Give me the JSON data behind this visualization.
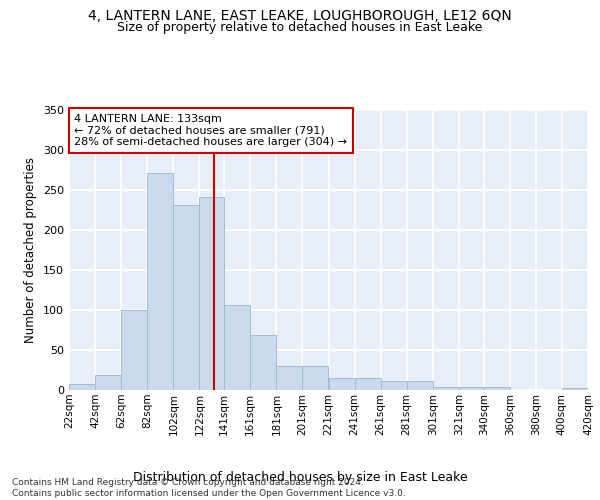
{
  "title": "4, LANTERN LANE, EAST LEAKE, LOUGHBOROUGH, LE12 6QN",
  "subtitle": "Size of property relative to detached houses in East Leake",
  "xlabel": "Distribution of detached houses by size in East Leake",
  "ylabel": "Number of detached properties",
  "bar_color": "#c9daef",
  "bar_edge_color": "#a0bcd8",
  "bg_color": "#e8eef8",
  "grid_color": "#ffffff",
  "property_size": 133,
  "property_line_color": "#cc0000",
  "annotation_line1": "4 LANTERN LANE: 133sqm",
  "annotation_line2": "← 72% of detached houses are smaller (791)",
  "annotation_line3": "28% of semi-detached houses are larger (304) →",
  "annotation_box_edgecolor": "#cc0000",
  "footer_line1": "Contains HM Land Registry data © Crown copyright and database right 2024.",
  "footer_line2": "Contains public sector information licensed under the Open Government Licence v3.0.",
  "bin_edges": [
    22,
    42,
    62,
    82,
    102,
    122,
    141,
    161,
    181,
    201,
    221,
    241,
    261,
    281,
    301,
    321,
    340,
    360,
    380,
    400,
    420
  ],
  "bin_labels": [
    "22sqm",
    "42sqm",
    "62sqm",
    "82sqm",
    "102sqm",
    "122sqm",
    "141sqm",
    "161sqm",
    "181sqm",
    "201sqm",
    "221sqm",
    "241sqm",
    "261sqm",
    "281sqm",
    "301sqm",
    "321sqm",
    "340sqm",
    "360sqm",
    "380sqm",
    "400sqm",
    "420sqm"
  ],
  "bar_heights": [
    7,
    19,
    100,
    271,
    231,
    241,
    106,
    69,
    30,
    30,
    15,
    15,
    11,
    11,
    4,
    4,
    4,
    0,
    0,
    3
  ],
  "ylim_max": 350,
  "yticks": [
    0,
    50,
    100,
    150,
    200,
    250,
    300,
    350
  ],
  "figsize": [
    6.0,
    5.0
  ],
  "dpi": 100
}
